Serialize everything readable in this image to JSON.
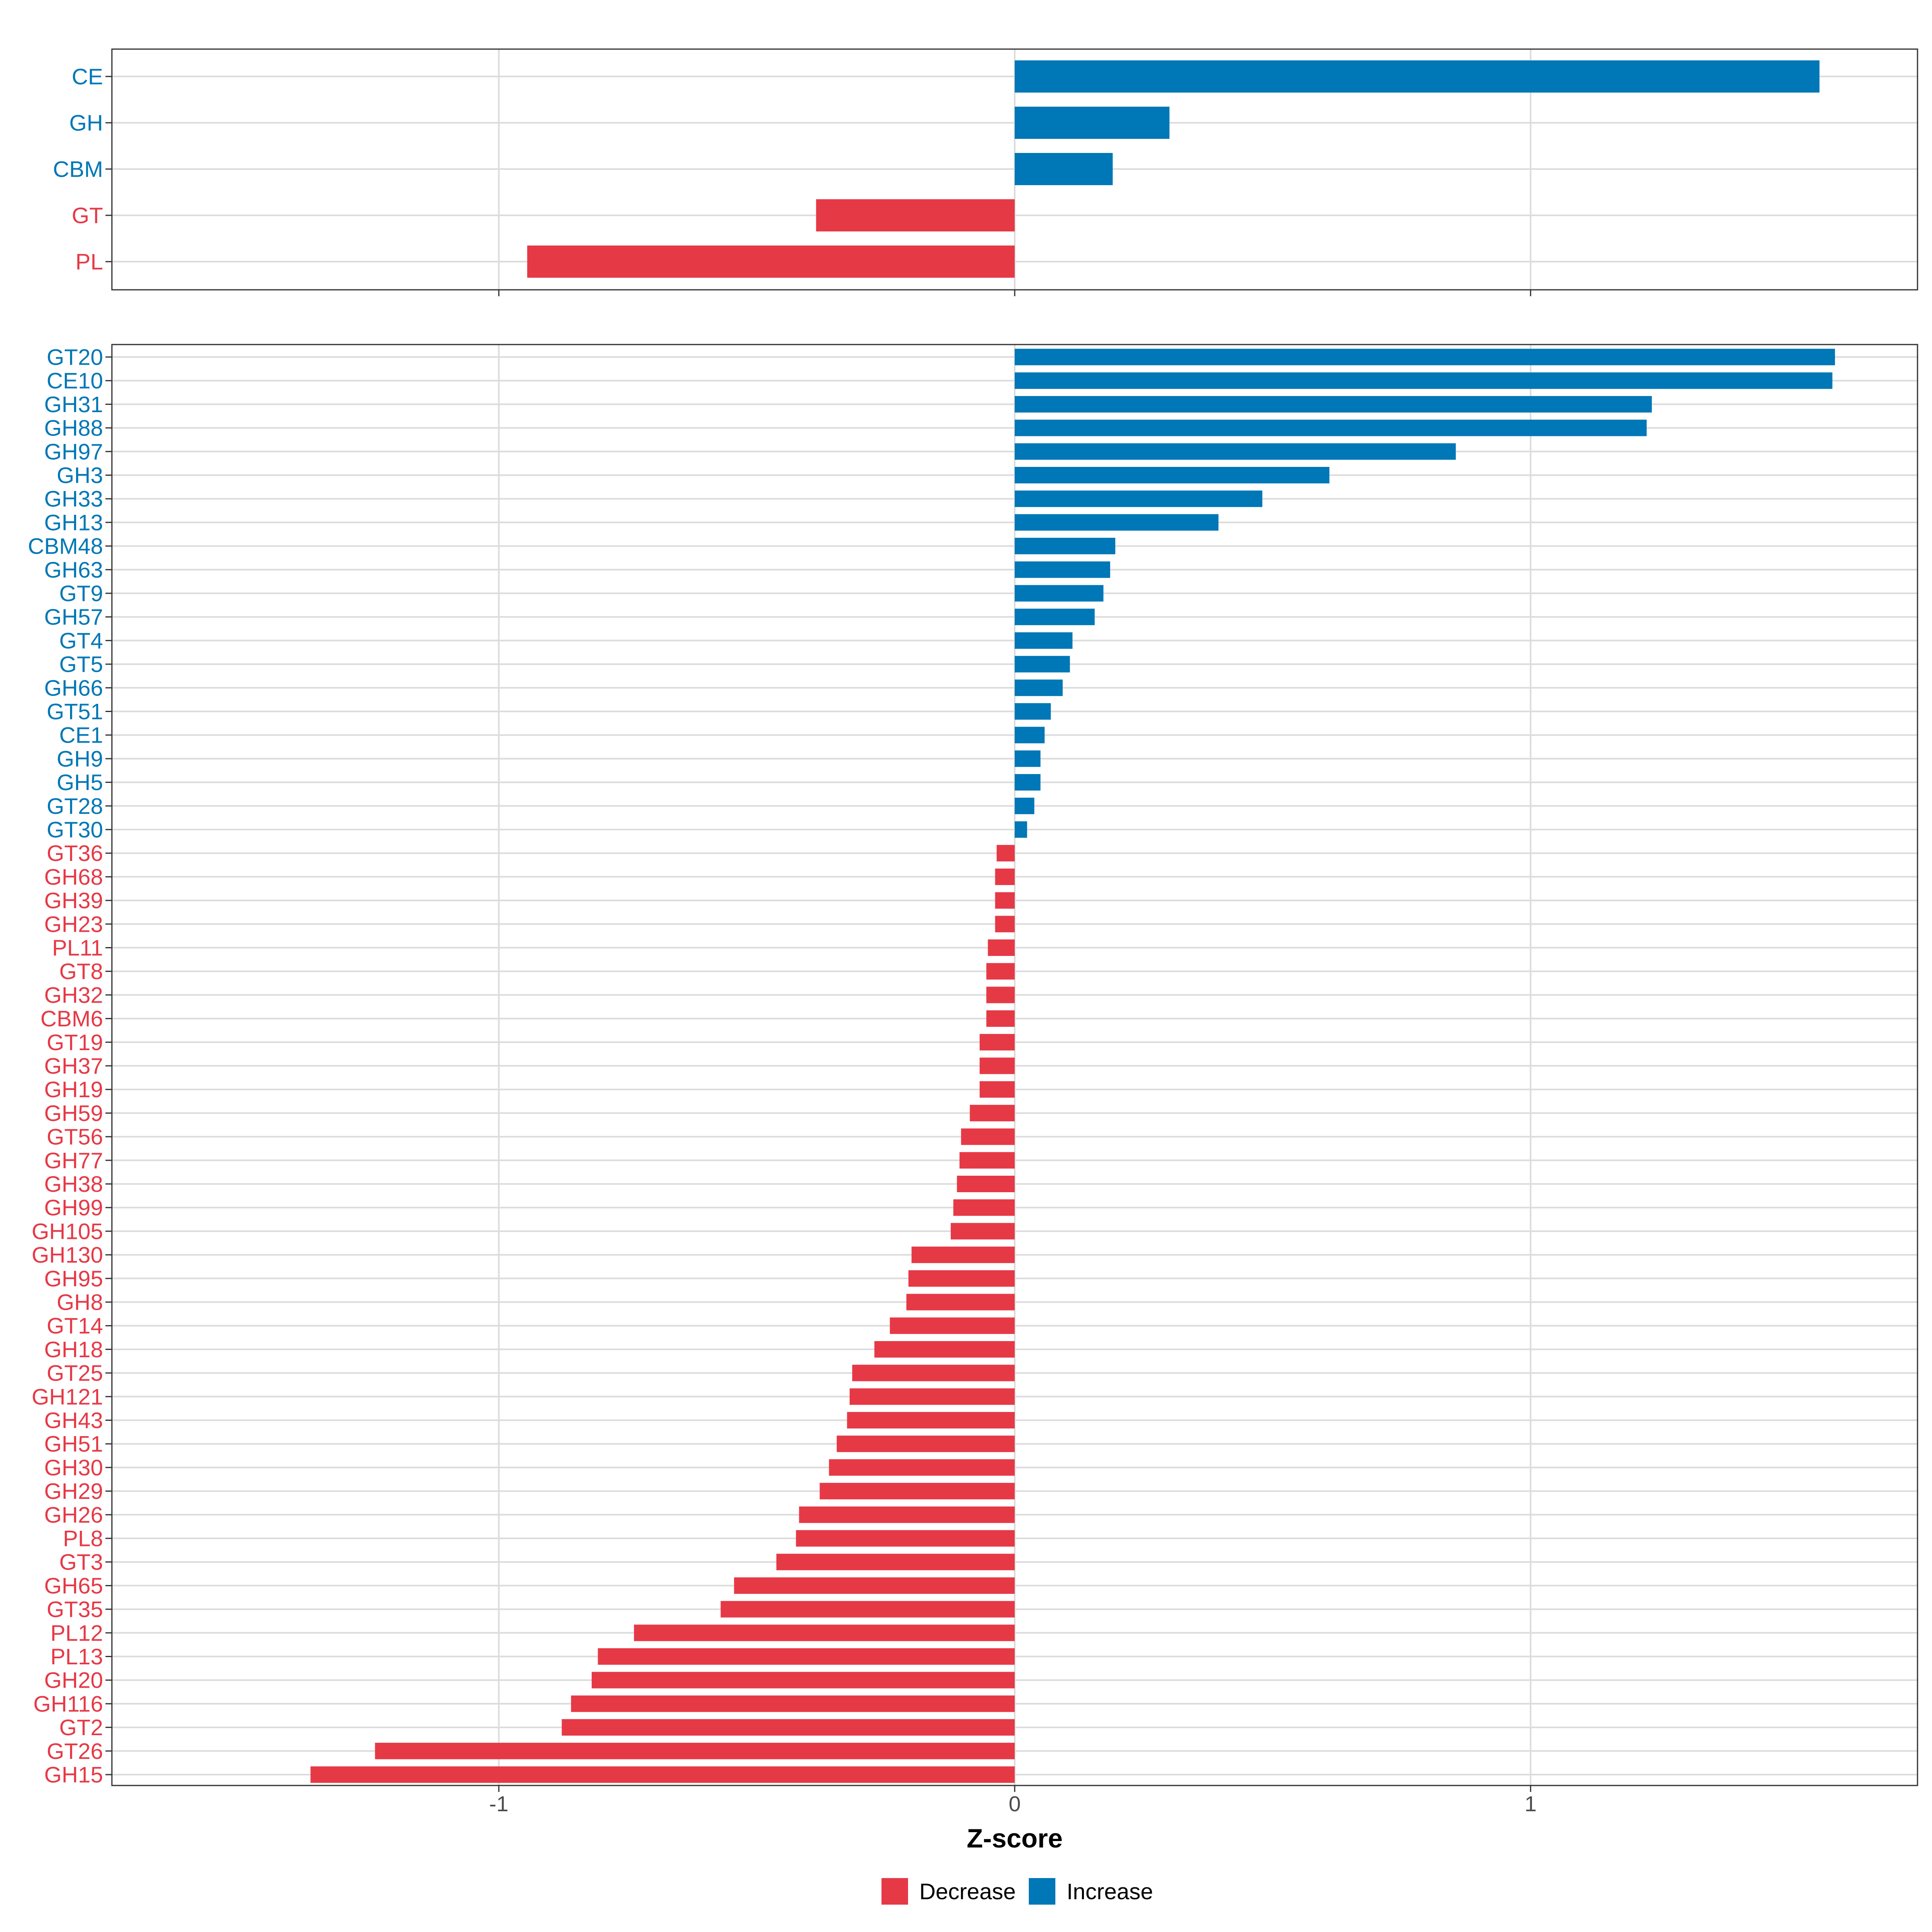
{
  "colors": {
    "decrease": "#E63946",
    "increase": "#0077B6",
    "grid": "#DCDCDC",
    "panel_border": "#333333",
    "tick_text": "#4D4D4D"
  },
  "chart_data": [
    {
      "type": "bar",
      "orientation": "horizontal",
      "panel": "category",
      "categories": [
        "CE",
        "GH",
        "CBM",
        "GT",
        "PL"
      ],
      "values": [
        1.56,
        0.3,
        0.19,
        -0.385,
        -0.945
      ],
      "directions": [
        "Increase",
        "Increase",
        "Increase",
        "Decrease",
        "Decrease"
      ],
      "xlim": [
        -1.75,
        1.75
      ],
      "xticks": [
        -1,
        0,
        1
      ],
      "grid": true
    },
    {
      "type": "bar",
      "orientation": "horizontal",
      "panel": "family",
      "categories": [
        "GT20",
        "CE10",
        "GH31",
        "GH88",
        "GH97",
        "GH3",
        "GH33",
        "GH13",
        "CBM48",
        "GH63",
        "GT9",
        "GH57",
        "GT4",
        "GT5",
        "GH66",
        "GT51",
        "CE1",
        "GH9",
        "GH5",
        "GT28",
        "GT30",
        "GT36",
        "GH68",
        "GH39",
        "GH23",
        "PL11",
        "GT8",
        "GH32",
        "CBM6",
        "GT19",
        "GH37",
        "GH19",
        "GH59",
        "GT56",
        "GH77",
        "GH38",
        "GH99",
        "GH105",
        "GH130",
        "GH95",
        "GH8",
        "GT14",
        "GH18",
        "GT25",
        "GH121",
        "GH43",
        "GH51",
        "GH30",
        "GH29",
        "GH26",
        "PL8",
        "GT3",
        "GH65",
        "GT35",
        "PL12",
        "PL13",
        "GH20",
        "GH116",
        "GT2",
        "GT26",
        "GH15"
      ],
      "values": [
        1.59,
        1.585,
        1.235,
        1.225,
        0.855,
        0.61,
        0.48,
        0.395,
        0.195,
        0.185,
        0.172,
        0.155,
        0.112,
        0.107,
        0.093,
        0.07,
        0.058,
        0.05,
        0.05,
        0.038,
        0.024,
        -0.035,
        -0.038,
        -0.038,
        -0.038,
        -0.052,
        -0.055,
        -0.055,
        -0.055,
        -0.068,
        -0.068,
        -0.068,
        -0.087,
        -0.104,
        -0.107,
        -0.112,
        -0.119,
        -0.124,
        -0.2,
        -0.206,
        -0.21,
        -0.242,
        -0.272,
        -0.315,
        -0.32,
        -0.325,
        -0.345,
        -0.36,
        -0.378,
        -0.418,
        -0.424,
        -0.462,
        -0.544,
        -0.57,
        -0.738,
        -0.808,
        -0.82,
        -0.86,
        -0.878,
        -1.24,
        -1.365
      ],
      "directions": [
        "Increase",
        "Increase",
        "Increase",
        "Increase",
        "Increase",
        "Increase",
        "Increase",
        "Increase",
        "Increase",
        "Increase",
        "Increase",
        "Increase",
        "Increase",
        "Increase",
        "Increase",
        "Increase",
        "Increase",
        "Increase",
        "Increase",
        "Increase",
        "Increase",
        "Decrease",
        "Decrease",
        "Decrease",
        "Decrease",
        "Decrease",
        "Decrease",
        "Decrease",
        "Decrease",
        "Decrease",
        "Decrease",
        "Decrease",
        "Decrease",
        "Decrease",
        "Decrease",
        "Decrease",
        "Decrease",
        "Decrease",
        "Decrease",
        "Decrease",
        "Decrease",
        "Decrease",
        "Decrease",
        "Decrease",
        "Decrease",
        "Decrease",
        "Decrease",
        "Decrease",
        "Decrease",
        "Decrease",
        "Decrease",
        "Decrease",
        "Decrease",
        "Decrease",
        "Decrease",
        "Decrease",
        "Decrease",
        "Decrease",
        "Decrease",
        "Decrease",
        "Decrease"
      ],
      "xlim": [
        -1.75,
        1.75
      ],
      "xticks": [
        -1,
        0,
        1
      ],
      "xtick_labels": [
        "-1",
        "0",
        "1"
      ],
      "xlabel": "Z-score",
      "grid": true
    }
  ],
  "legend": {
    "position": "bottom",
    "items": [
      {
        "label": "Decrease",
        "key": "decrease"
      },
      {
        "label": "Increase",
        "key": "increase"
      }
    ]
  }
}
